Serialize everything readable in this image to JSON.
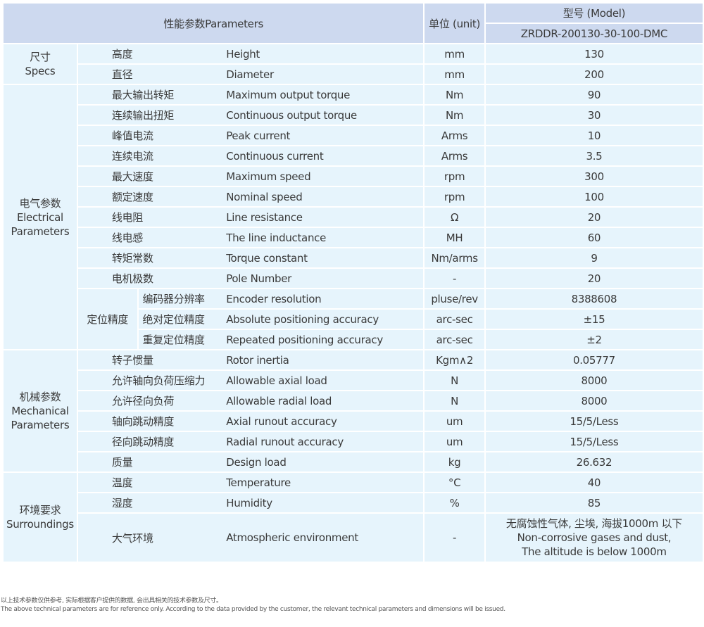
{
  "header": {
    "parameters": "性能参数Parameters",
    "unit": "单位 (unit)",
    "model_label": "型号 (Model)",
    "model": "ZRDDR-200130-30-100-DMC"
  },
  "groups": [
    {
      "cn": "尺寸",
      "en": "Specs",
      "rows": [
        {
          "cn": "高度",
          "en": "Height",
          "unit": "mm",
          "value": "130"
        },
        {
          "cn": "直径",
          "en": "Diameter",
          "unit": "mm",
          "value": "200"
        }
      ]
    },
    {
      "cn": "电气参数",
      "en": "Electrical Parameters",
      "rows": [
        {
          "cn": "最大输出转矩",
          "en": "Maximum output torque",
          "unit": "Nm",
          "value": "90"
        },
        {
          "cn": "连续输出扭矩",
          "en": "Continuous output torque",
          "unit": "Nm",
          "value": "30"
        },
        {
          "cn": "峰值电流",
          "en": "Peak current",
          "unit": "Arms",
          "value": "10"
        },
        {
          "cn": "连续电流",
          "en": "Continuous current",
          "unit": "Arms",
          "value": "3.5"
        },
        {
          "cn": "最大速度",
          "en": "Maximum speed",
          "unit": "rpm",
          "value": "300"
        },
        {
          "cn": "额定速度",
          "en": "Nominal speed",
          "unit": "rpm",
          "value": "100"
        },
        {
          "cn": "线电阻",
          "en": "Line resistance",
          "unit": "Ω",
          "value": "20"
        },
        {
          "cn": "线电感",
          "en": "The line inductance",
          "unit": "MH",
          "value": "60"
        },
        {
          "cn": "转矩常数",
          "en": "Torque constant",
          "unit": "Nm/arms",
          "value": "9"
        },
        {
          "cn": "电机极数",
          "en": "Pole Number",
          "unit": "-",
          "value": "20"
        }
      ],
      "sub": {
        "cn": "定位精度",
        "rows": [
          {
            "cn": "编码器分辨率",
            "en": "Encoder resolution",
            "unit": "pluse/rev",
            "value": "8388608"
          },
          {
            "cn": "绝对定位精度",
            "en": "Absolute positioning accuracy",
            "unit": "arc-sec",
            "value": "±15"
          },
          {
            "cn": "重复定位精度",
            "en": "Repeated positioning accuracy",
            "unit": "arc-sec",
            "value": "±2"
          }
        ]
      }
    },
    {
      "cn": "机械参数",
      "en": "Mechanical Parameters",
      "rows": [
        {
          "cn": "转子惯量",
          "en": "Rotor inertia",
          "unit": "Kgm∧2",
          "value": "0.05777"
        },
        {
          "cn": "允许轴向负荷压缩力",
          "en": "Allowable axial load",
          "unit": "N",
          "value": "8000"
        },
        {
          "cn": "允许径向负荷",
          "en": "Allowable radial load",
          "unit": "N",
          "value": "8000"
        },
        {
          "cn": "轴向跳动精度",
          "en": "Axial runout accuracy",
          "unit": "um",
          "value": "15/5/Less"
        },
        {
          "cn": "径向跳动精度",
          "en": "Radial runout accuracy",
          "unit": "um",
          "value": "15/5/Less"
        },
        {
          "cn": "质量",
          "en": "Design load",
          "unit": "kg",
          "value": "26.632"
        }
      ]
    },
    {
      "cn": "环境要求",
      "en": "Surroundings",
      "rows": [
        {
          "cn": "温度",
          "en": "Temperature",
          "unit": "°C",
          "value": "40"
        },
        {
          "cn": "湿度",
          "en": "Humidity",
          "unit": "%",
          "value": "85"
        }
      ],
      "last": {
        "cn": "大气环境",
        "en": "Atmospheric environment",
        "unit": "-",
        "value_lines": [
          "无腐蚀性气体, 尘埃, 海拔1000m 以下",
          "Non-corrosive gases and dust,",
          "The altitude is below 1000m"
        ]
      }
    }
  ],
  "notes": [
    "以上技术参数仅供参考, 实际根据客户提供的数据, 会出具相关的技术参数及尺寸。",
    "The above technical parameters are for reference only. According to the data provided by the customer, the relevant technical parameters and dimensions will be issued."
  ]
}
